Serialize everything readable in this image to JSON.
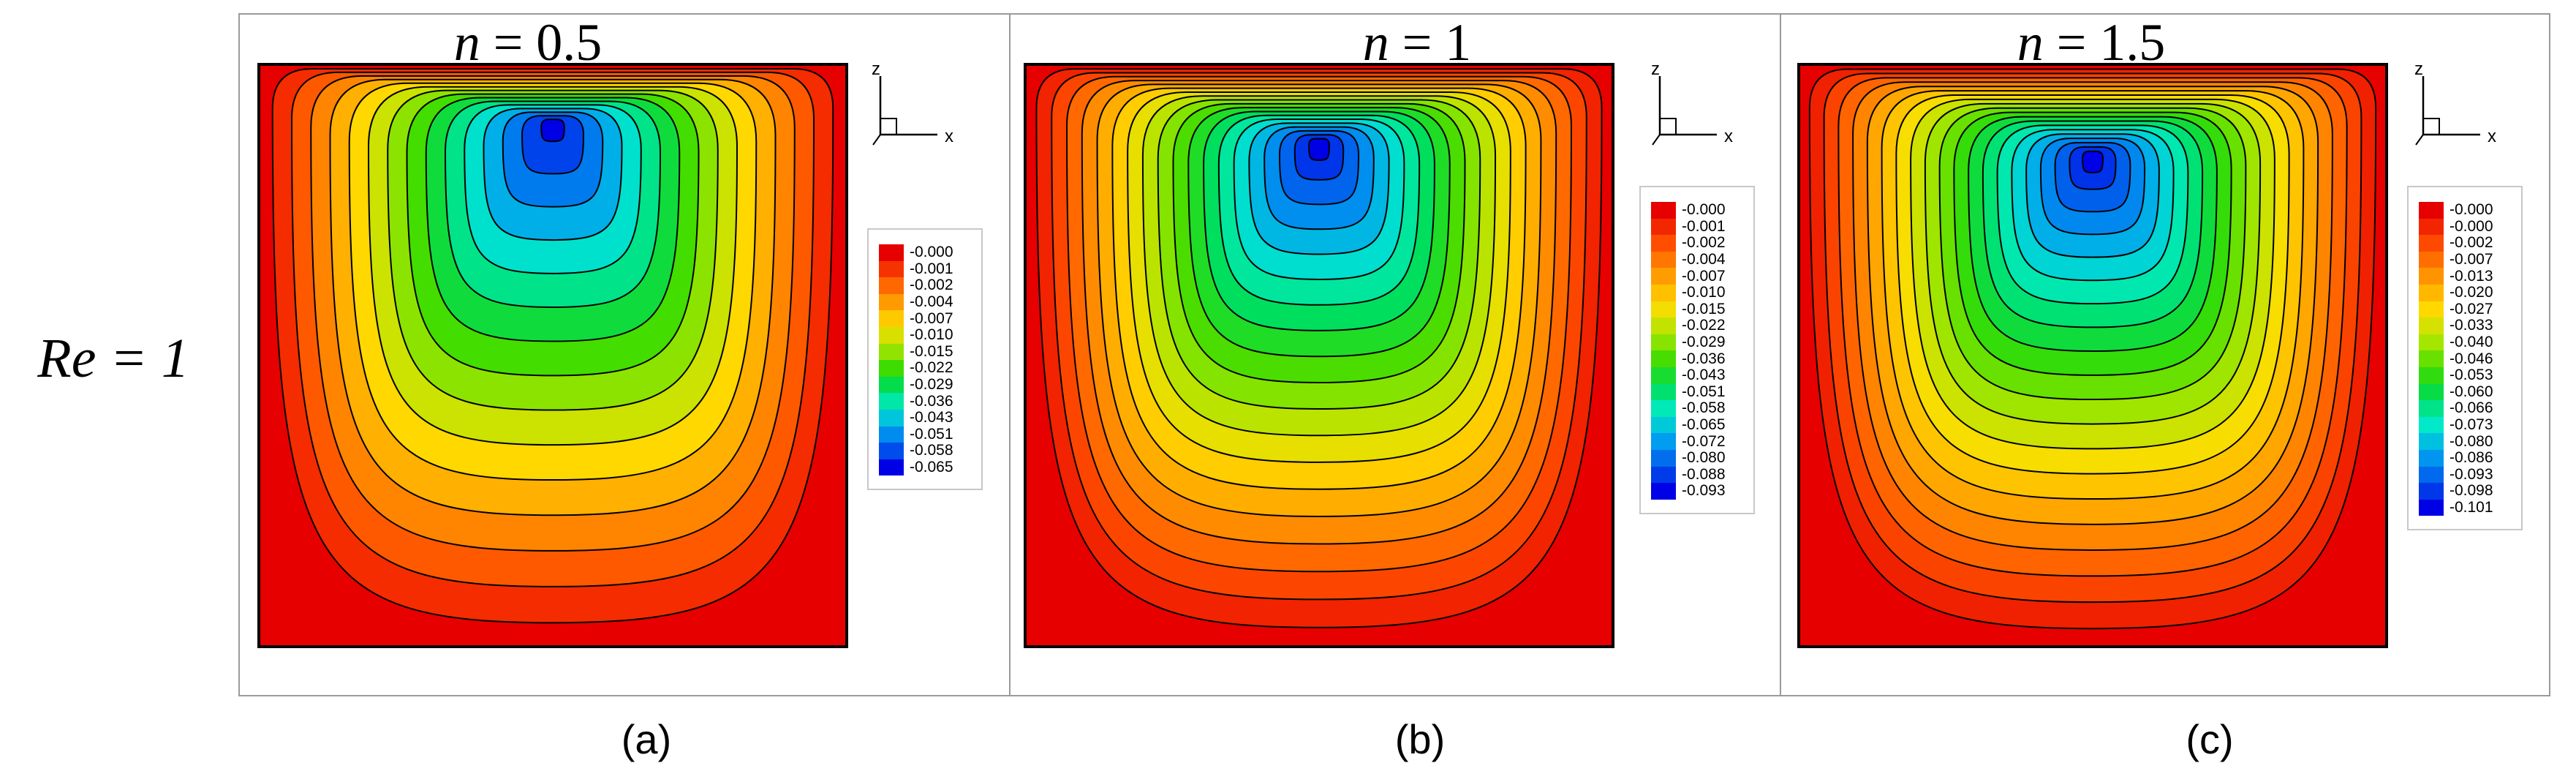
{
  "row_label": "Re = 1",
  "panels": [
    {
      "title_var": "n",
      "title_val": "= 0.5",
      "caption": "(a)",
      "axis_z": "z",
      "axis_x": "x",
      "legend": [
        "-0.000",
        "-0.001",
        "-0.002",
        "-0.004",
        "-0.007",
        "-0.010",
        "-0.015",
        "-0.022",
        "-0.029",
        "-0.036",
        "-0.043",
        "-0.051",
        "-0.058",
        "-0.065"
      ]
    },
    {
      "title_var": "n",
      "title_val": "= 1",
      "caption": "(b)",
      "axis_z": "z",
      "axis_x": "x",
      "legend": [
        "-0.000",
        "-0.001",
        "-0.002",
        "-0.004",
        "-0.007",
        "-0.010",
        "-0.015",
        "-0.022",
        "-0.029",
        "-0.036",
        "-0.043",
        "-0.051",
        "-0.058",
        "-0.065",
        "-0.072",
        "-0.080",
        "-0.088",
        "-0.093"
      ]
    },
    {
      "title_var": "n",
      "title_val": "= 1.5",
      "caption": "(c)",
      "axis_z": "z",
      "axis_x": "x",
      "legend": [
        "-0.000",
        "-0.000",
        "-0.002",
        "-0.007",
        "-0.013",
        "-0.020",
        "-0.027",
        "-0.033",
        "-0.040",
        "-0.046",
        "-0.053",
        "-0.060",
        "-0.066",
        "-0.073",
        "-0.080",
        "-0.086",
        "-0.093",
        "-0.098",
        "-0.101"
      ]
    }
  ],
  "colors": {
    "contour_line": "#000000",
    "frame": "#9a9a9a",
    "legend_border": "#c8c8c8"
  }
}
